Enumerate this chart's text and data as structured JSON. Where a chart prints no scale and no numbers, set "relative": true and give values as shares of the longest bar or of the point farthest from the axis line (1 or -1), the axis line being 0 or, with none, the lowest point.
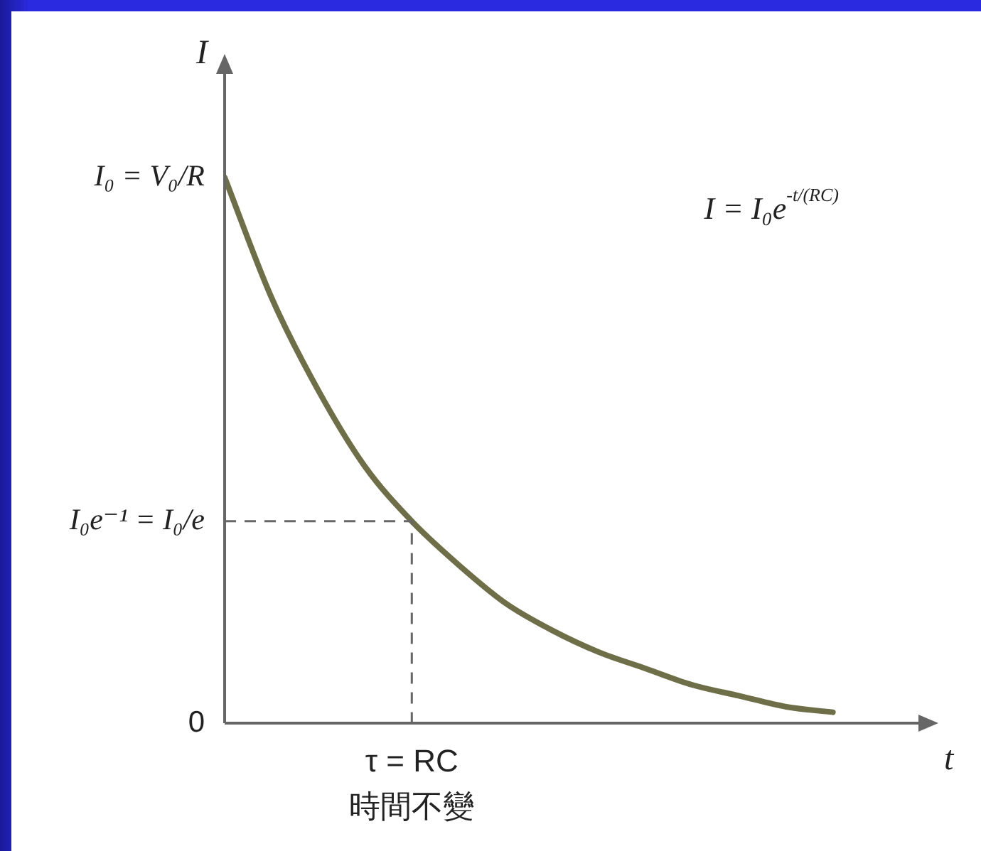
{
  "chart_data": {
    "type": "line",
    "relative": true,
    "xlabel": "t",
    "ylabel": "I",
    "annotations": [
      "I = I₀e$^{-t/(RC)}$",
      "I₀ = V₀/R",
      "0",
      "τ = RC",
      "時間不變"
    ],
    "categories": [
      null,
      null,
      null,
      null,
      null,
      null,
      null,
      null,
      null,
      null,
      null,
      null,
      null,
      null
    ],
    "series": [
      {
        "color": "#6e6e48",
        "values": [
          1,
          0.78,
          0.61,
          0.47,
          0.37,
          0.29,
          0.22,
          0.17,
          0.13,
          0.1,
          0.07,
          0.05,
          0.03,
          0.02
        ]
      }
    ],
    "ref_lines": [
      {
        "axis": "y",
        "value": 0.37,
        "label": "I₀e⁻¹ = I₀/e",
        "color": "#666666",
        "line_style": "dashed"
      }
    ],
    "legend": false,
    "marker": "none",
    "line_style": "solid"
  }
}
